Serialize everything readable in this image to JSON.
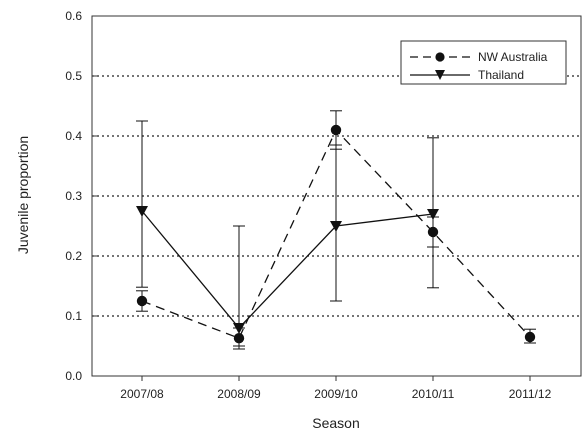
{
  "chart_data": {
    "type": "line",
    "xlabel": "Season",
    "ylabel": "Juvenile proportion",
    "categories": [
      "2007/08",
      "2008/09",
      "2009/10",
      "2010/11",
      "2011/12"
    ],
    "ylim": [
      0,
      0.6
    ],
    "yticks": [
      "0.0",
      "0.1",
      "0.2",
      "0.3",
      "0.4",
      "0.5",
      "0.6"
    ],
    "grid": "horizontal dotted",
    "legend_position": "top-right",
    "series": [
      {
        "name": "NW Australia",
        "marker": "circle",
        "line": "dashed",
        "values": [
          0.125,
          0.063,
          0.41,
          0.24,
          0.065
        ],
        "error": [
          [
            0.108,
            0.142
          ],
          [
            0.045,
            0.08
          ],
          [
            0.378,
            0.442
          ],
          [
            0.215,
            0.265
          ],
          [
            0.055,
            0.078
          ]
        ]
      },
      {
        "name": "Thailand",
        "marker": "triangle-down",
        "line": "solid",
        "values": [
          0.275,
          0.08,
          0.25,
          0.27,
          null
        ],
        "error": [
          [
            0.148,
            0.425
          ],
          [
            0.05,
            0.25
          ],
          [
            0.125,
            0.385
          ],
          [
            0.147,
            0.397
          ],
          null
        ]
      }
    ]
  }
}
